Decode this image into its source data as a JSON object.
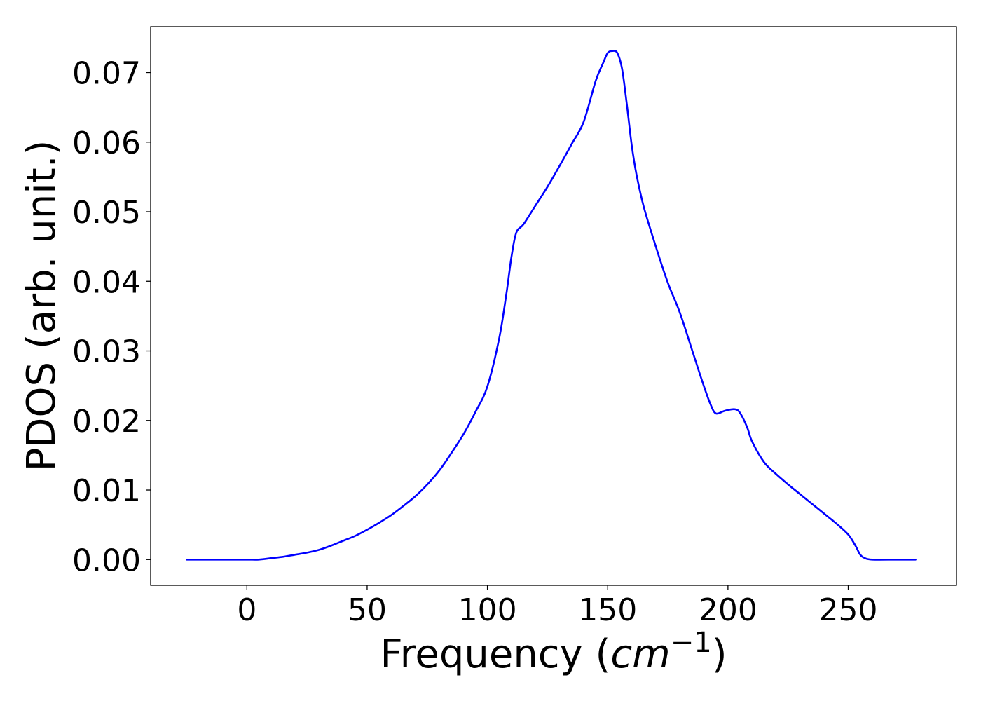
{
  "chart_data": {
    "type": "line",
    "title": "",
    "xlabel": "Frequency (cm⁻¹)",
    "xlabel_main": "Frequency (",
    "xlabel_unit": "cm",
    "xlabel_exp": "−1",
    "xlabel_close": ")",
    "ylabel": "PDOS (arb. unit.)",
    "xlim": [
      -40,
      295
    ],
    "ylim": [
      -0.0037,
      0.0766
    ],
    "xticks": [
      0,
      50,
      100,
      150,
      200,
      250
    ],
    "xtick_labels": [
      "0",
      "50",
      "100",
      "150",
      "200",
      "250"
    ],
    "yticks": [
      0.0,
      0.01,
      0.02,
      0.03,
      0.04,
      0.05,
      0.06,
      0.07
    ],
    "ytick_labels": [
      "0.00",
      "0.01",
      "0.02",
      "0.03",
      "0.04",
      "0.05",
      "0.06",
      "0.07"
    ],
    "grid": false,
    "legend": "none",
    "line_color": "#0000ff",
    "series": [
      {
        "x": [
          -25,
          -10,
          0,
          5,
          10,
          15,
          20,
          25,
          30,
          35,
          40,
          45,
          50,
          55,
          60,
          65,
          70,
          75,
          80,
          85,
          90,
          95,
          100,
          105,
          108,
          110,
          112,
          115,
          120,
          125,
          130,
          135,
          140,
          145,
          148,
          150,
          152,
          154,
          156,
          158,
          160,
          162,
          165,
          170,
          175,
          180,
          185,
          190,
          193,
          195,
          198,
          200,
          203,
          205,
          208,
          210,
          215,
          220,
          225,
          230,
          235,
          240,
          245,
          250,
          253,
          255,
          257,
          260,
          270,
          278
        ],
        "y": [
          0.0,
          0.0,
          0.0,
          0.0,
          0.0002,
          0.0004,
          0.0007,
          0.001,
          0.0014,
          0.002,
          0.0027,
          0.0034,
          0.0043,
          0.0053,
          0.0064,
          0.0077,
          0.0091,
          0.0108,
          0.0128,
          0.0153,
          0.018,
          0.0212,
          0.0249,
          0.032,
          0.0385,
          0.0435,
          0.047,
          0.0482,
          0.0509,
          0.0536,
          0.0566,
          0.0597,
          0.0629,
          0.0688,
          0.0713,
          0.0728,
          0.0731,
          0.0728,
          0.0705,
          0.0653,
          0.0595,
          0.0553,
          0.0507,
          0.045,
          0.0398,
          0.0355,
          0.0302,
          0.0249,
          0.0221,
          0.021,
          0.0213,
          0.0215,
          0.0216,
          0.0211,
          0.019,
          0.017,
          0.014,
          0.0123,
          0.0108,
          0.0094,
          0.008,
          0.0066,
          0.0052,
          0.0036,
          0.002,
          0.0007,
          0.0002,
          0.0,
          0.0,
          0.0
        ]
      }
    ]
  }
}
